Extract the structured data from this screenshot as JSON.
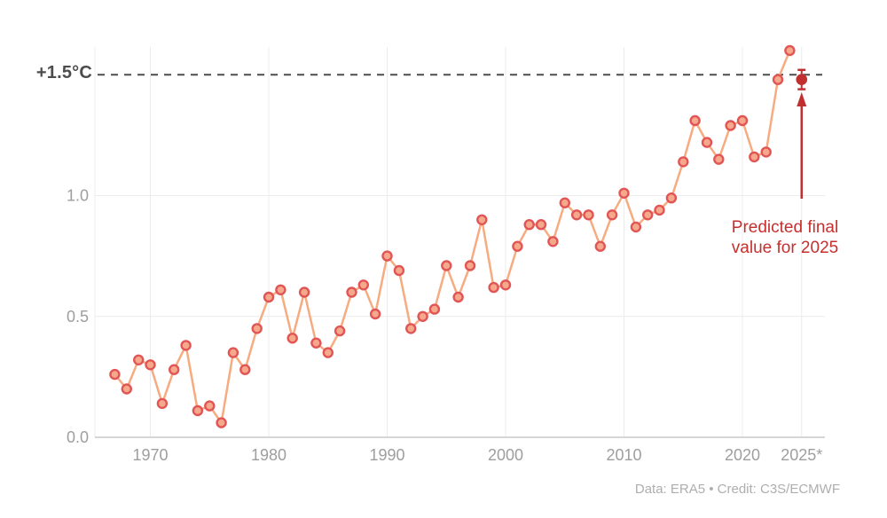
{
  "chart_data": {
    "type": "line",
    "x": [
      1967,
      1968,
      1969,
      1970,
      1971,
      1972,
      1973,
      1974,
      1975,
      1976,
      1977,
      1978,
      1979,
      1980,
      1981,
      1982,
      1983,
      1984,
      1985,
      1986,
      1987,
      1988,
      1989,
      1990,
      1991,
      1992,
      1993,
      1994,
      1995,
      1996,
      1997,
      1998,
      1999,
      2000,
      2001,
      2002,
      2003,
      2004,
      2005,
      2006,
      2007,
      2008,
      2009,
      2010,
      2011,
      2012,
      2013,
      2014,
      2015,
      2016,
      2017,
      2018,
      2019,
      2020,
      2021,
      2022,
      2023,
      2024
    ],
    "values": [
      0.26,
      0.2,
      0.32,
      0.3,
      0.14,
      0.28,
      0.38,
      0.11,
      0.13,
      0.06,
      0.35,
      0.28,
      0.45,
      0.58,
      0.61,
      0.41,
      0.6,
      0.39,
      0.35,
      0.44,
      0.6,
      0.63,
      0.51,
      0.75,
      0.69,
      0.45,
      0.5,
      0.53,
      0.71,
      0.58,
      0.71,
      0.9,
      0.62,
      0.63,
      0.79,
      0.88,
      0.88,
      0.81,
      0.97,
      0.92,
      0.92,
      0.79,
      0.92,
      1.01,
      0.87,
      0.92,
      0.94,
      0.99,
      1.14,
      1.31,
      1.22,
      1.15,
      1.29,
      1.31,
      1.16,
      1.18,
      1.48,
      1.6
    ],
    "predicted": {
      "year": 2025,
      "value": 1.48,
      "error_low": 1.44,
      "error_high": 1.52
    },
    "threshold": {
      "value": 1.5,
      "label": "+1.5°C"
    },
    "annotation": {
      "line1": "Predicted final",
      "line2": "value for 2025"
    },
    "credit": "Data: ERA5 • Credit: C3S/ECMWF",
    "x_ticks": [
      {
        "year": 1970,
        "label": "1970"
      },
      {
        "year": 1980,
        "label": "1980"
      },
      {
        "year": 1990,
        "label": "1990"
      },
      {
        "year": 2000,
        "label": "2000"
      },
      {
        "year": 2010,
        "label": "2010"
      },
      {
        "year": 2020,
        "label": "2020"
      },
      {
        "year": 2025,
        "label": "2025*"
      }
    ],
    "y_ticks": [
      {
        "value": 0.0,
        "label": "0.0"
      },
      {
        "value": 0.5,
        "label": "0.5"
      },
      {
        "value": 1.0,
        "label": "1.0"
      }
    ],
    "xlim": [
      1965,
      2027
    ],
    "ylim": [
      0,
      1.62
    ],
    "grid": true,
    "legend": "none",
    "colors": {
      "background": "#ffffff",
      "line": "#f6ab80",
      "marker_fill": "#f5a88c",
      "marker_stroke": "#e15555",
      "prediction": "#c13030",
      "annotation_text": "#c5302e",
      "threshold_line": "#4d4d4d",
      "threshold_label": "#4c4c4c",
      "tick_label": "#9e9e9e",
      "credit": "#aeaeae",
      "grid": "#ececec",
      "axis": "#d6d6d6"
    }
  }
}
